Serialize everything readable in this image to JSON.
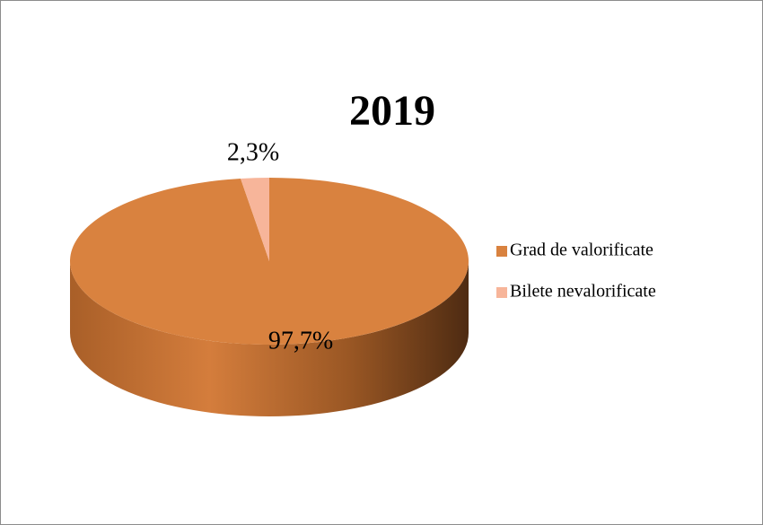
{
  "chart_data": {
    "type": "pie3d",
    "title": "2019",
    "categories": [
      "Grad de valorificate",
      "Bilete nevalorificate"
    ],
    "values": [
      97.7,
      2.3
    ],
    "value_labels": [
      "97,7%",
      "2,3%"
    ],
    "colors": [
      "#d9823f",
      "#f7b59a"
    ],
    "legend": "right"
  }
}
